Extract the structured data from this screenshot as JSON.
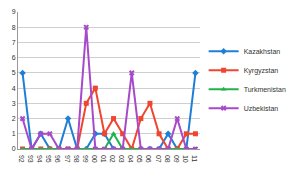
{
  "chart_data": {
    "type": "line",
    "categories": [
      "92",
      "93",
      "94",
      "95",
      "96",
      "97",
      "98",
      "99",
      "00",
      "01",
      "02",
      "03",
      "04",
      "05",
      "06",
      "07",
      "08",
      "09",
      "10",
      "11"
    ],
    "series": [
      {
        "name": "Kazakhstan",
        "color": "#1f7fd6",
        "marker": "diamond",
        "values": [
          5,
          0,
          1,
          0,
          0,
          2,
          0,
          0,
          1,
          1,
          0,
          0,
          0,
          0,
          0,
          0,
          1,
          0,
          0,
          5
        ]
      },
      {
        "name": "Kyrgyzstan",
        "color": "#ef4630",
        "marker": "square",
        "values": [
          0,
          0,
          0,
          0,
          0,
          0,
          0,
          3,
          4,
          1,
          2,
          1,
          0,
          2,
          3,
          1,
          0,
          0,
          1,
          1
        ]
      },
      {
        "name": "Turkmenistan",
        "color": "#22b24c",
        "marker": "triangle",
        "values": [
          0,
          0,
          0,
          0,
          0,
          0,
          0,
          0,
          0,
          0,
          1,
          0,
          0,
          0,
          0,
          0,
          0,
          0,
          0,
          0
        ]
      },
      {
        "name": "Uzbekistan",
        "color": "#a64ac9",
        "marker": "x",
        "values": [
          2,
          0,
          1,
          1,
          0,
          0,
          0,
          8,
          0,
          0,
          0,
          0,
          5,
          0,
          0,
          0,
          0,
          2,
          0,
          0
        ]
      }
    ],
    "ylim": [
      0,
      9
    ],
    "yticks": [
      0,
      1,
      2,
      3,
      4,
      5,
      6,
      7,
      8,
      9
    ],
    "grid": true,
    "legend": "right"
  }
}
